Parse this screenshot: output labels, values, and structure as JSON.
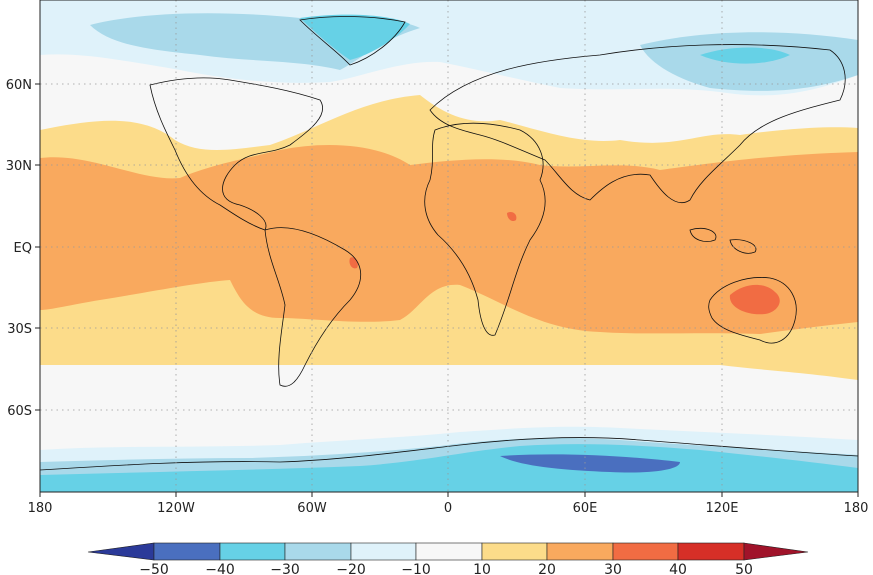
{
  "map": {
    "x_ticks": [
      "180",
      "120W",
      "60W",
      "0",
      "60E",
      "120E",
      "180"
    ],
    "y_ticks": [
      "60N",
      "30N",
      "EQ",
      "30S",
      "60S"
    ]
  },
  "colorbar": {
    "labels": [
      "−50",
      "−40",
      "−30",
      "−20",
      "−10",
      "10",
      "20",
      "30",
      "40",
      "50"
    ],
    "colors": [
      "#2b3a99",
      "#4a6fbf",
      "#66d1e6",
      "#a9d9ea",
      "#dff2fa",
      "#f7f7f7",
      "#fcdc8a",
      "#f9a95e",
      "#f16c43",
      "#d62f27",
      "#a0132a"
    ]
  },
  "field_colors": {
    "very_cold": "#4a6fbf",
    "cold": "#66d1e6",
    "cool": "#a9d9ea",
    "chilly": "#dff2fa",
    "neutral": "#f7f7f7",
    "mild": "#fcdc8a",
    "warm": "#f9a95e",
    "hot": "#f16c43"
  }
}
